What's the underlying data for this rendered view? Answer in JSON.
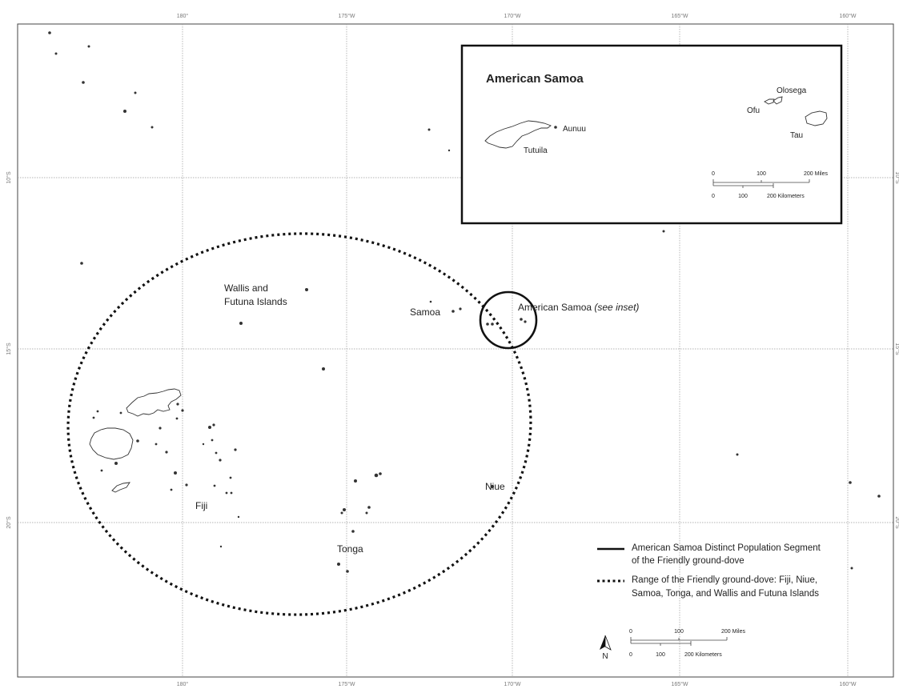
{
  "map": {
    "graticule": {
      "lon_labels": [
        "180°",
        "175°W",
        "170°W",
        "165°W",
        "160°W"
      ],
      "lat_labels": [
        "10°S",
        "15°S",
        "20°S"
      ]
    },
    "place_labels": {
      "wallis_line1": "Wallis and",
      "wallis_line2": "Futuna Islands",
      "samoa": "Samoa",
      "american_samoa": "American Samoa",
      "american_samoa_note": "(see inset)",
      "fiji": "Fiji",
      "tonga": "Tonga",
      "niue": "Niue"
    },
    "inset": {
      "title": "American Samoa",
      "islands": [
        "Aunuu",
        "Tutuila",
        "Ofu",
        "Olosega",
        "Tau"
      ],
      "scale_miles": [
        "0",
        "100",
        "200 Miles"
      ],
      "scale_km": [
        "0",
        "100",
        "200 Kilometers"
      ]
    },
    "legend": {
      "dps_line1": "American Samoa Distinct Population Segment",
      "dps_line2": "of the Friendly ground-dove",
      "range_line1": "Range of the Friendly ground-dove: Fiji, Niue,",
      "range_line2": "Samoa, Tonga, and Wallis and Futuna Islands"
    },
    "scale_bar": {
      "miles": [
        "0",
        "100",
        "200 Miles"
      ],
      "km": [
        "0",
        "100",
        "200 Kilometers"
      ]
    },
    "north_arrow": "N",
    "colors": {
      "ink": "#222222",
      "grid": "#9a9a9a",
      "background": "#ffffff"
    }
  }
}
